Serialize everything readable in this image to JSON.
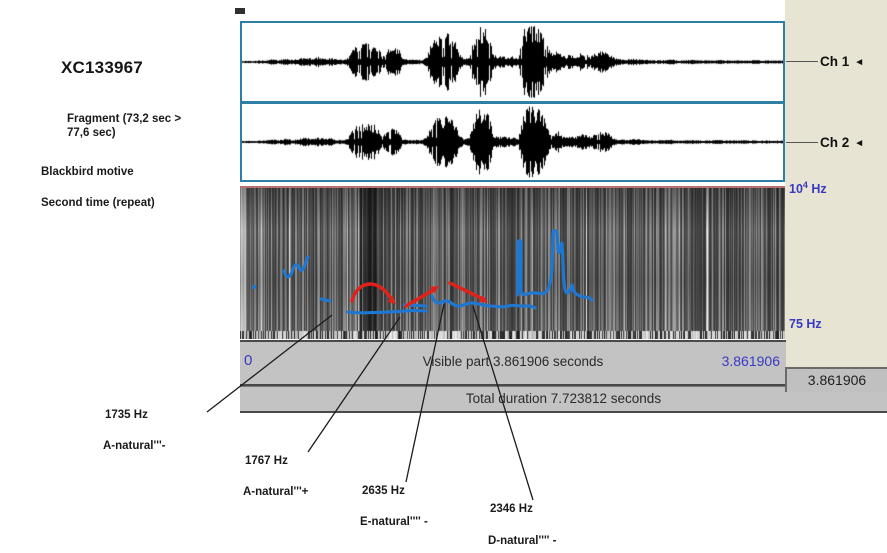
{
  "left_panel": {
    "title": "XC133967",
    "fragment": "Fragment (73,2 sec >\n77,6 sec)",
    "note1": "Blackbird motive",
    "note2": "Second time (repeat)"
  },
  "channels": [
    {
      "label": "Ch 1",
      "icon": "◄"
    },
    {
      "label": "Ch 2",
      "icon": "◄"
    }
  ],
  "spectrogram": {
    "freq_top": {
      "base": "10",
      "exp": "4",
      "unit": " Hz"
    },
    "freq_bottom": "75 Hz"
  },
  "timebar": {
    "start": "0",
    "visible_label": "Visible part 3.861906 seconds",
    "end": "3.861906",
    "selection_box": "3.861906",
    "total_label": "Total duration 7.723812 seconds"
  },
  "annotations": [
    {
      "freq": "1735 Hz",
      "note": "A-natural'''-"
    },
    {
      "freq": "1767 Hz",
      "note": "A-natural'''+"
    },
    {
      "freq": "2635 Hz",
      "note": "E-natural'''' -"
    },
    {
      "freq": "2346 Hz",
      "note": "D-natural'''' -"
    }
  ],
  "colors": {
    "blue_text": "#3939c4",
    "trace_blue": "#1e78d2",
    "arrow_red": "#e0221a",
    "panel_border": "#2d7fa6",
    "beige": "#e7e4d3"
  }
}
